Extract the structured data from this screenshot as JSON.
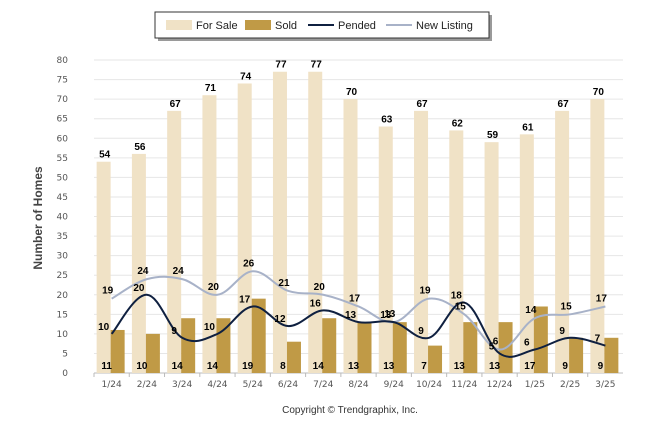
{
  "chart_data": {
    "type": "bar",
    "ylabel": "Number of Homes",
    "ylim": [
      0,
      80
    ],
    "ytick_step": 5,
    "categories": [
      "1/24",
      "2/24",
      "3/24",
      "4/24",
      "5/24",
      "6/24",
      "7/24",
      "8/24",
      "9/24",
      "10/24",
      "11/24",
      "12/24",
      "1/25",
      "2/25",
      "3/25"
    ],
    "series": [
      {
        "name": "For Sale",
        "kind": "bar",
        "color": "#f0e2c6",
        "values": [
          54,
          56,
          67,
          71,
          74,
          77,
          77,
          70,
          63,
          67,
          62,
          59,
          61,
          67,
          70
        ]
      },
      {
        "name": "Sold",
        "kind": "bar",
        "color": "#c09a46",
        "values": [
          11,
          10,
          14,
          14,
          19,
          8,
          14,
          13,
          13,
          7,
          13,
          13,
          17,
          9,
          9
        ]
      },
      {
        "name": "Pended",
        "kind": "line",
        "color": "#0f2040",
        "values": [
          10,
          20,
          9,
          10,
          17,
          12,
          16,
          13,
          13,
          9,
          18,
          5,
          6,
          9,
          7
        ]
      },
      {
        "name": "New Listing",
        "kind": "line",
        "color": "#a8b2c8",
        "values": [
          19,
          24,
          24,
          20,
          26,
          21,
          20,
          17,
          13,
          19,
          15,
          6,
          14,
          15,
          17
        ]
      }
    ],
    "legend_position": "top"
  },
  "copyright": "Copyright © Trendgraphix, Inc."
}
